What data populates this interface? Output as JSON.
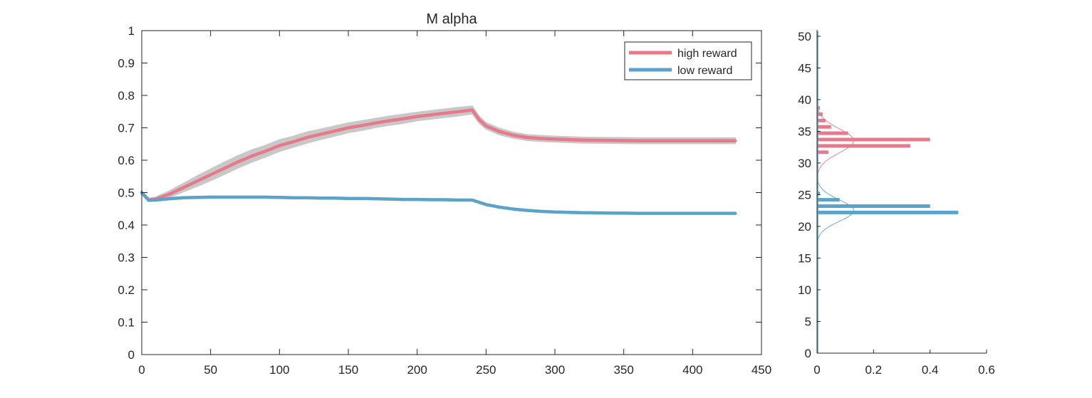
{
  "colors": {
    "high": "#E8798A",
    "low": "#5BA3C8",
    "band": "#C8C8C8",
    "axis": "#262626"
  },
  "chart_data": [
    {
      "type": "line",
      "title": "M  alpha",
      "xlabel": "",
      "ylabel": "",
      "xlim": [
        0,
        450
      ],
      "ylim": [
        0,
        1
      ],
      "xticks": [
        "0",
        "50",
        "100",
        "150",
        "200",
        "250",
        "300",
        "350",
        "400",
        "450"
      ],
      "yticks": [
        "0",
        "0.1",
        "0.2",
        "0.3",
        "0.4",
        "0.5",
        "0.6",
        "0.7",
        "0.8",
        "0.9",
        "1"
      ],
      "legend": {
        "placement": "top-right",
        "entries": [
          "high reward",
          "low reward"
        ]
      },
      "grid": false,
      "x": [
        0,
        5,
        10,
        20,
        30,
        40,
        50,
        60,
        70,
        80,
        90,
        100,
        110,
        120,
        130,
        140,
        150,
        160,
        170,
        180,
        190,
        200,
        210,
        220,
        230,
        240,
        245,
        250,
        260,
        270,
        280,
        290,
        300,
        320,
        340,
        360,
        380,
        400,
        431
      ],
      "series": [
        {
          "name": "high reward",
          "values": [
            0.5,
            0.478,
            0.48,
            0.495,
            0.515,
            0.535,
            0.555,
            0.575,
            0.595,
            0.613,
            0.628,
            0.645,
            0.657,
            0.67,
            0.68,
            0.69,
            0.7,
            0.707,
            0.715,
            0.722,
            0.728,
            0.735,
            0.74,
            0.745,
            0.75,
            0.755,
            0.725,
            0.706,
            0.688,
            0.677,
            0.67,
            0.667,
            0.665,
            0.662,
            0.661,
            0.66,
            0.66,
            0.66,
            0.66
          ],
          "band": [
            0.004,
            0.004,
            0.006,
            0.01,
            0.013,
            0.016,
            0.018,
            0.019,
            0.019,
            0.019,
            0.018,
            0.018,
            0.017,
            0.017,
            0.016,
            0.016,
            0.015,
            0.015,
            0.014,
            0.014,
            0.014,
            0.013,
            0.013,
            0.013,
            0.013,
            0.012,
            0.011,
            0.01,
            0.01,
            0.009,
            0.009,
            0.009,
            0.009,
            0.009,
            0.009,
            0.009,
            0.009,
            0.009,
            0.009
          ]
        },
        {
          "name": "low reward",
          "values": [
            0.5,
            0.476,
            0.477,
            0.481,
            0.484,
            0.485,
            0.486,
            0.486,
            0.486,
            0.486,
            0.486,
            0.485,
            0.484,
            0.484,
            0.483,
            0.483,
            0.482,
            0.482,
            0.481,
            0.48,
            0.479,
            0.479,
            0.478,
            0.478,
            0.477,
            0.477,
            0.47,
            0.463,
            0.455,
            0.449,
            0.445,
            0.442,
            0.44,
            0.438,
            0.437,
            0.436,
            0.436,
            0.436,
            0.436
          ],
          "band": [
            0.003,
            0.003,
            0.003,
            0.003,
            0.003,
            0.003,
            0.003,
            0.003,
            0.003,
            0.003,
            0.003,
            0.003,
            0.003,
            0.003,
            0.003,
            0.003,
            0.003,
            0.003,
            0.003,
            0.003,
            0.003,
            0.003,
            0.003,
            0.003,
            0.003,
            0.003,
            0.003,
            0.003,
            0.003,
            0.003,
            0.003,
            0.003,
            0.003,
            0.003,
            0.003,
            0.003,
            0.003,
            0.003,
            0.003
          ]
        }
      ]
    },
    {
      "type": "bar",
      "orientation": "horizontal",
      "title": "",
      "xlim": [
        0,
        0.6
      ],
      "ylim": [
        0,
        51
      ],
      "xticks": [
        "0",
        "0.2",
        "0.4",
        "0.6"
      ],
      "yticks": [
        "0",
        "5",
        "10",
        "15",
        "20",
        "25",
        "30",
        "35",
        "40",
        "45",
        "50"
      ],
      "grid": false,
      "series": [
        {
          "name": "high reward",
          "y": [
            31.7,
            32.7,
            33.7,
            34.7,
            35.7,
            36.7,
            37.7,
            38.7
          ],
          "values": [
            0.04,
            0.33,
            0.4,
            0.11,
            0.05,
            0.03,
            0.02,
            0.01
          ],
          "fit": {
            "mean": 33.5,
            "sd": 1.9,
            "peak": 0.13,
            "range": [
              25,
              42
            ]
          }
        },
        {
          "name": "low reward",
          "y": [
            22.2,
            23.2,
            24.2,
            25.2
          ],
          "values": [
            0.5,
            0.4,
            0.08,
            0.01
          ],
          "fit": {
            "mean": 22.5,
            "sd": 1.7,
            "peak": 0.13,
            "range": [
              16.5,
              30
            ]
          }
        }
      ]
    }
  ]
}
